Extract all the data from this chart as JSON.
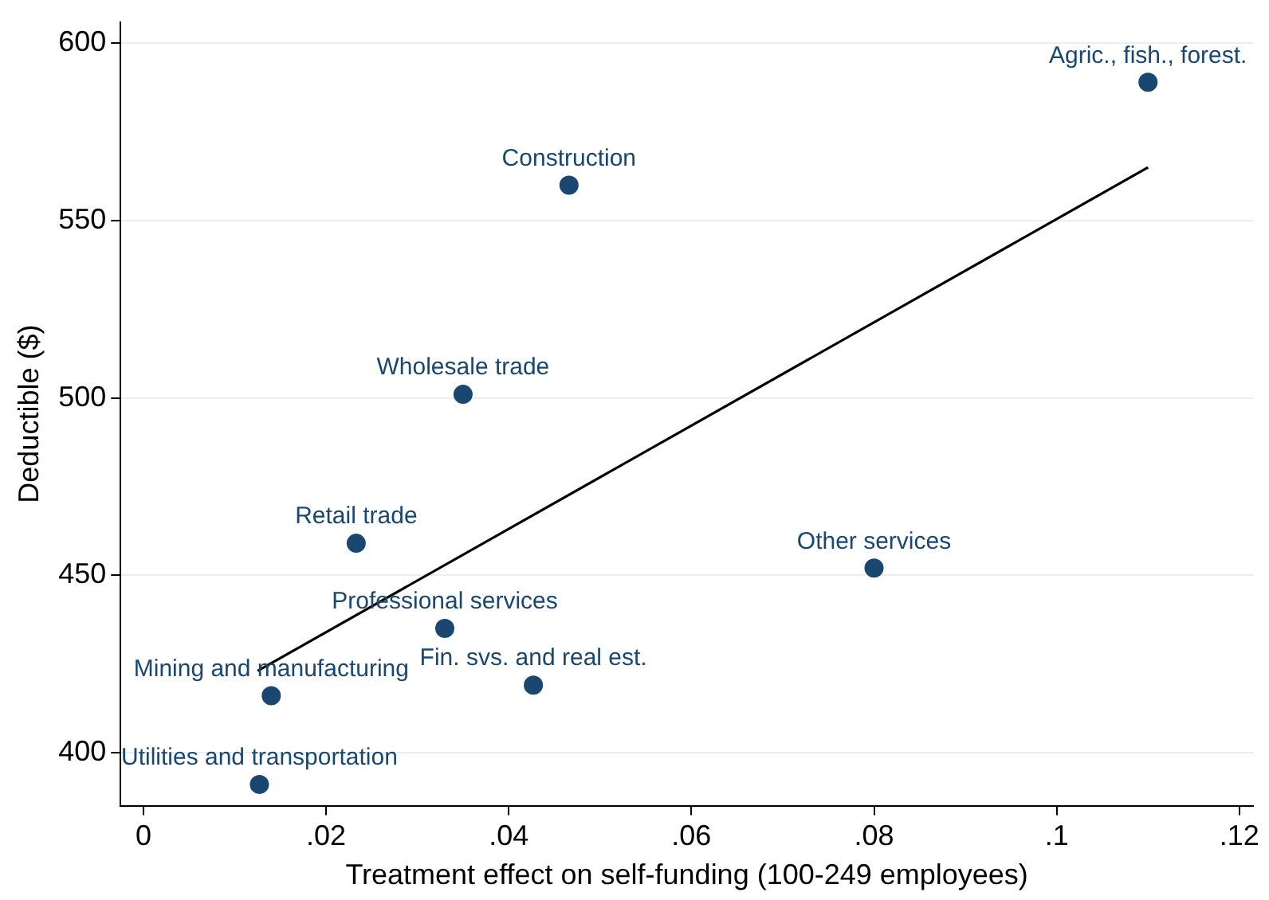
{
  "chart_data": {
    "type": "scatter",
    "xlabel": "Treatment effect on self-funding (100-249 employees)",
    "ylabel": "Deductible ($)",
    "xlim": [
      -0.0025,
      0.1215
    ],
    "ylim": [
      385,
      606
    ],
    "xticks": [
      {
        "value": 0,
        "label": "0"
      },
      {
        "value": 0.02,
        "label": ".02"
      },
      {
        "value": 0.04,
        "label": ".04"
      },
      {
        "value": 0.06,
        "label": ".06"
      },
      {
        "value": 0.08,
        "label": ".08"
      },
      {
        "value": 0.1,
        "label": ".1"
      },
      {
        "value": 0.12,
        "label": ".12"
      }
    ],
    "yticks": [
      400,
      450,
      500,
      550,
      600
    ],
    "grid": "y",
    "legend": false,
    "marker": "circle",
    "series": [
      {
        "type": "scatter",
        "color": "#1a476f",
        "x": [
          0.11,
          0.0466,
          0.035,
          0.0233,
          0.08,
          0.033,
          0.0427,
          0.014,
          0.0127
        ],
        "values": [
          589,
          560,
          501,
          459,
          452,
          435,
          419,
          416,
          391
        ]
      },
      {
        "type": "line",
        "color": "#000000",
        "marker": "none",
        "x": [
          0.0125,
          0.11
        ],
        "values": [
          423,
          565
        ]
      }
    ],
    "annotations": [
      {
        "text": "Agric., fish., forest.",
        "x": 0.11,
        "y": 589
      },
      {
        "text": "Construction",
        "x": 0.0466,
        "y": 560
      },
      {
        "text": "Wholesale trade",
        "x": 0.035,
        "y": 501
      },
      {
        "text": "Retail trade",
        "x": 0.0233,
        "y": 459
      },
      {
        "text": "Other services",
        "x": 0.08,
        "y": 452
      },
      {
        "text": "Professional services",
        "x": 0.033,
        "y": 435
      },
      {
        "text": "Fin. svs. and real est.",
        "x": 0.0427,
        "y": 419
      },
      {
        "text": "Mining and manufacturing",
        "x": 0.014,
        "y": 416
      },
      {
        "text": "Utilities and transportation",
        "x": 0.0127,
        "y": 391
      }
    ]
  }
}
